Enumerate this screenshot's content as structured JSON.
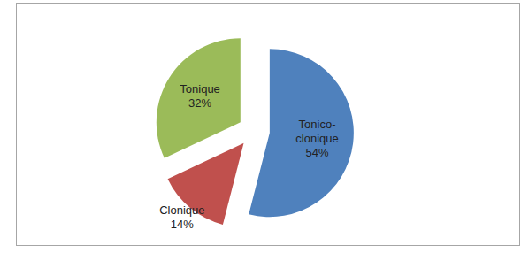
{
  "chart_data": {
    "type": "pie",
    "categories": [
      "Tonico-clonique",
      "Clonique",
      "Tonique"
    ],
    "values": [
      54,
      14,
      32
    ],
    "value_labels": [
      "54%",
      "14%",
      "32%"
    ],
    "colors": [
      "#4f81bd",
      "#c0504d",
      "#9bbb59"
    ],
    "data_labels": true
  }
}
